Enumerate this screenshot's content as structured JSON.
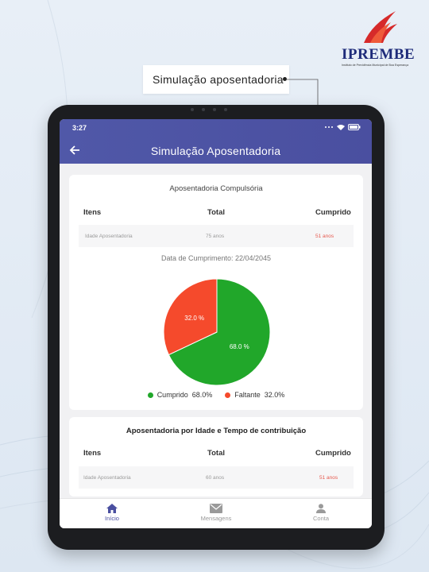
{
  "logo": {
    "name": "IPREMBE",
    "subtitle": "Instituto de Previdência Municipal de Boa Esperança"
  },
  "callout": {
    "text": "Simulação aposentadoria"
  },
  "status_bar": {
    "time": "3:27"
  },
  "app_bar": {
    "title": "Simulação Aposentadoria",
    "back_icon": "arrow-left-icon"
  },
  "card1": {
    "title": "Aposentadoria Compulsória",
    "headers": {
      "items": "Itens",
      "total": "Total",
      "cumprido": "Cumprido"
    },
    "row": {
      "item": "Idade Aposentadoria",
      "total": "75 anos",
      "cumprido": "51 anos"
    },
    "date_label": "Data de Cumprimento: 22/04/2045"
  },
  "chart_data": {
    "type": "pie",
    "categories": [
      "Cumprido",
      "Faltante"
    ],
    "values": [
      68.0,
      32.0
    ],
    "slice_labels": [
      "68.0 %",
      "32.0 %"
    ],
    "colors": [
      "#21a72a",
      "#f54a2c"
    ],
    "legend": [
      {
        "label": "Cumprido",
        "value": "68.0%"
      },
      {
        "label": "Faltante",
        "value": "32.0%"
      }
    ],
    "legend_position": "bottom"
  },
  "card2": {
    "title": "Aposentadoria por Idade e Tempo de contribuição",
    "headers": {
      "items": "Itens",
      "total": "Total",
      "cumprido": "Cumprido"
    },
    "row": {
      "item": "Idade Aposentadoria",
      "total": "60 anos",
      "cumprido": "51 anos"
    }
  },
  "bottom_nav": [
    {
      "label": "Início",
      "icon": "home-icon",
      "active": true
    },
    {
      "label": "Mensagens",
      "icon": "mail-icon",
      "active": false
    },
    {
      "label": "Conta",
      "icon": "person-icon",
      "active": false
    }
  ],
  "colors": {
    "primary": "#4a4fa0",
    "green": "#21a72a",
    "red": "#f54a2c"
  }
}
